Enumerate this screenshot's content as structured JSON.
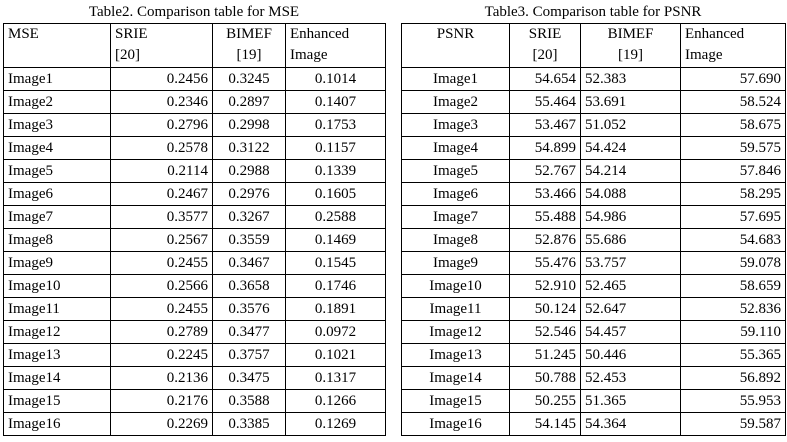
{
  "left": {
    "title": "Table2. Comparison table for MSE",
    "header": [
      [
        "MSE"
      ],
      [
        "SRIE",
        "[20]"
      ],
      [
        "BIMEF",
        "[19]"
      ],
      [
        "Enhanced",
        "Image"
      ]
    ],
    "rows": [
      [
        "Image1",
        "0.2456",
        "0.3245",
        "0.1014"
      ],
      [
        "Image2",
        "0.2346",
        "0.2897",
        "0.1407"
      ],
      [
        "Image3",
        "0.2796",
        "0.2998",
        "0.1753"
      ],
      [
        "Image4",
        "0.2578",
        "0.3122",
        "0.1157"
      ],
      [
        "Image5",
        "0.2114",
        "0.2988",
        "0.1339"
      ],
      [
        "Image6",
        "0.2467",
        "0.2976",
        "0.1605"
      ],
      [
        "Image7",
        "0.3577",
        "0.3267",
        "0.2588"
      ],
      [
        "Image8",
        "0.2567",
        "0.3559",
        "0.1469"
      ],
      [
        "Image9",
        "0.2455",
        "0.3467",
        "0.1545"
      ],
      [
        "Image10",
        "0.2566",
        "0.3658",
        "0.1746"
      ],
      [
        "Image11",
        "0.2455",
        "0.3576",
        "0.1891"
      ],
      [
        "Image12",
        "0.2789",
        "0.3477",
        "0.0972"
      ],
      [
        "Image13",
        "0.2245",
        "0.3757",
        "0.1021"
      ],
      [
        "Image14",
        "0.2136",
        "0.3475",
        "0.1317"
      ],
      [
        "Image15",
        "0.2176",
        "0.3588",
        "0.1266"
      ],
      [
        "Image16",
        "0.2269",
        "0.3385",
        "0.1269"
      ]
    ]
  },
  "right": {
    "title": "Table3. Comparison table for PSNR",
    "header": [
      [
        "PSNR"
      ],
      [
        "SRIE",
        "[20]"
      ],
      [
        "BIMEF",
        "[19]"
      ],
      [
        "Enhanced",
        "Image"
      ]
    ],
    "rows": [
      [
        "Image1",
        "54.654",
        "52.383",
        "57.690"
      ],
      [
        "Image2",
        "55.464",
        "53.691",
        "58.524"
      ],
      [
        "Image3",
        "53.467",
        "51.052",
        "58.675"
      ],
      [
        "Image4",
        "54.899",
        "54.424",
        "59.575"
      ],
      [
        "Image5",
        "52.767",
        "54.214",
        "57.846"
      ],
      [
        "Image6",
        "53.466",
        "54.088",
        "58.295"
      ],
      [
        "Image7",
        "55.488",
        "54.986",
        "57.695"
      ],
      [
        "Image8",
        "52.876",
        "55.686",
        "54.683"
      ],
      [
        "Image9",
        "55.476",
        "53.757",
        "59.078"
      ],
      [
        "Image10",
        "52.910",
        "52.465",
        "58.659"
      ],
      [
        "Image11",
        "50.124",
        "52.647",
        "52.836"
      ],
      [
        "Image12",
        "52.546",
        "54.457",
        "59.110"
      ],
      [
        "Image13",
        "51.245",
        "50.446",
        "55.365"
      ],
      [
        "Image14",
        "50.788",
        "52.453",
        "56.892"
      ],
      [
        "Image15",
        "50.255",
        "51.365",
        "55.953"
      ],
      [
        "Image16",
        "54.145",
        "54.364",
        "59.587"
      ]
    ]
  }
}
